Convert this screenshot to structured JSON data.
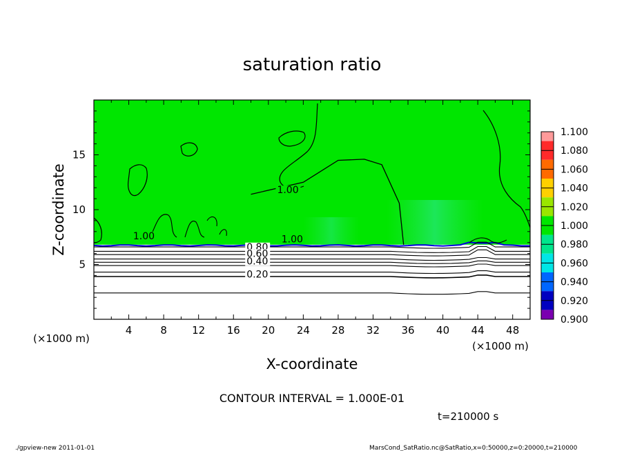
{
  "chart_data": {
    "type": "heatmap",
    "title": "saturation ratio",
    "xlabel": "X-coordinate",
    "ylabel": "Z-coordinate",
    "x_unit_left": "(×1000 m)",
    "x_unit_right": "(×1000 m)",
    "xlim": [
      0,
      50
    ],
    "ylim": [
      0,
      20
    ],
    "x_ticks": [
      4,
      8,
      12,
      16,
      20,
      24,
      28,
      32,
      36,
      40,
      44,
      48
    ],
    "x_tick_labels": [
      "4",
      "8",
      "12",
      "16",
      "20",
      "24",
      "28",
      "32",
      "36",
      "40",
      "44",
      "48"
    ],
    "y_ticks": [
      5,
      10,
      15
    ],
    "y_tick_labels": [
      "5",
      "10",
      "15"
    ],
    "colorbar": {
      "levels": [
        "1.100",
        "1.080",
        "1.060",
        "1.040",
        "1.020",
        "1.000",
        "0.980",
        "0.960",
        "0.940",
        "0.920",
        "0.900"
      ],
      "colors": [
        "#ff9a9a",
        "#ff2a2a",
        "#ff6a00",
        "#ffd000",
        "#9ae600",
        "#00e600",
        "#00e68c",
        "#00e6e6",
        "#0066ff",
        "#0000c0",
        "#7a00b0"
      ]
    },
    "saturated_layer_top_z": 6.8,
    "saturated_value": 1.0,
    "contour_labels": [
      {
        "text": "1.00",
        "x": 21,
        "z": 11.5
      },
      {
        "text": "1.00",
        "x": 4.5,
        "z": 7.3
      },
      {
        "text": "1.00",
        "x": 21.5,
        "z": 7.0
      },
      {
        "text": "0.80",
        "x": 17.5,
        "z": 6.3
      },
      {
        "text": "0.60",
        "x": 17.5,
        "z": 5.7
      },
      {
        "text": "0.40",
        "x": 17.5,
        "z": 5.0
      },
      {
        "text": "0.20",
        "x": 17.5,
        "z": 3.8
      }
    ],
    "lower_contours": [
      {
        "value": 0.9,
        "z": 6.6
      },
      {
        "value": 0.8,
        "z": 6.2
      },
      {
        "value": 0.7,
        "z": 5.9
      },
      {
        "value": 0.6,
        "z": 5.5
      },
      {
        "value": 0.5,
        "z": 5.2
      },
      {
        "value": 0.4,
        "z": 4.9
      },
      {
        "value": 0.3,
        "z": 4.3
      },
      {
        "value": 0.2,
        "z": 3.9
      },
      {
        "value": 0.1,
        "z": 2.4
      }
    ],
    "dome_contour": [
      [
        18,
        11.4
      ],
      [
        24,
        12.5
      ],
      [
        28,
        14.5
      ],
      [
        31,
        14.6
      ],
      [
        33,
        14.1
      ],
      [
        35,
        10.6
      ],
      [
        35.5,
        6.8
      ]
    ],
    "note_contour_interval": "CONTOUR INTERVAL = 1.000E-01",
    "time_label": "t=210000 s"
  },
  "footer": {
    "left": "./gpview-new   2011-01-01",
    "right": "MarsCond_SatRatio.nc@SatRatio,x=0:50000,z=0:20000,t=210000"
  },
  "colors": {
    "field_green": "#00e600",
    "contour": "#000000",
    "unsaturated": "#ffffff"
  }
}
